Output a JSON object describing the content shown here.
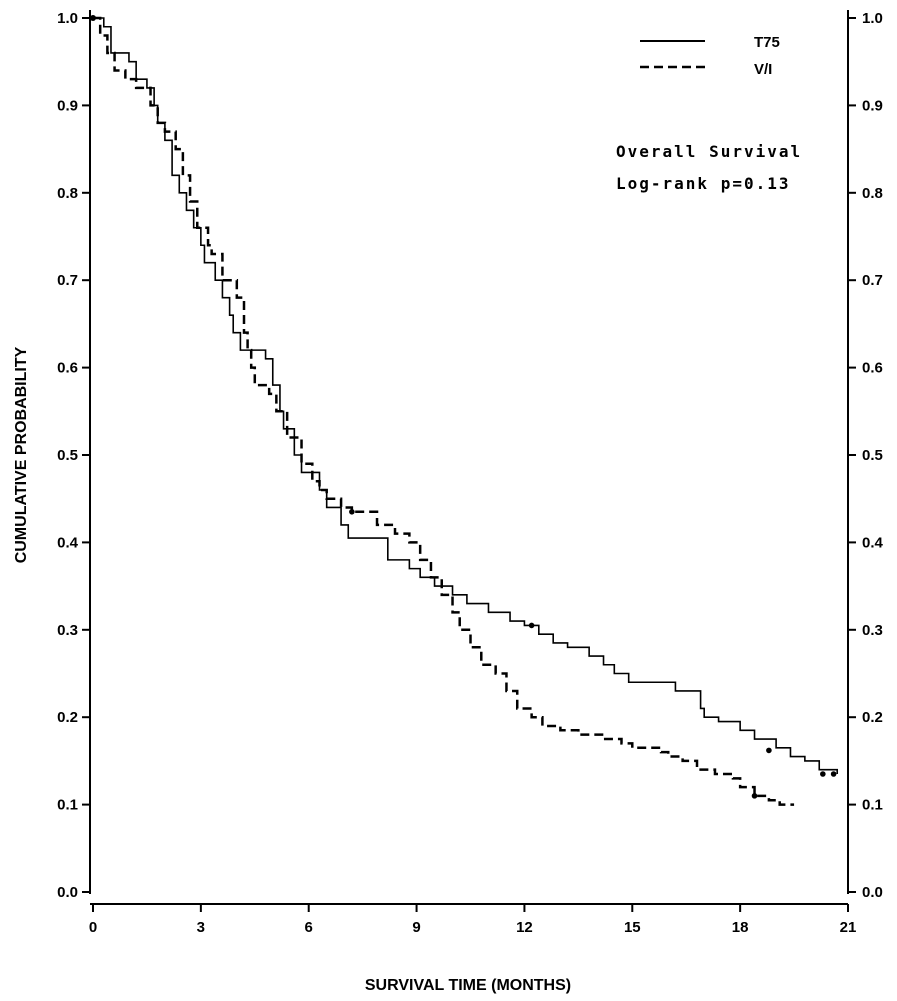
{
  "chart_data": {
    "type": "line",
    "subtype": "kaplan-meier",
    "title": "",
    "xlabel": "SURVIVAL TIME (MONTHS)",
    "ylabel": "CUMULATIVE PROBABILITY",
    "xlim": [
      0,
      21
    ],
    "ylim": [
      0.0,
      1.0
    ],
    "x_ticks": [
      0,
      3,
      6,
      9,
      12,
      15,
      18,
      21
    ],
    "x_tick_labels": [
      "0",
      "3",
      "6",
      "9",
      "12",
      "15",
      "18",
      "21"
    ],
    "y_ticks": [
      0.0,
      0.1,
      0.2,
      0.3,
      0.4,
      0.5,
      0.6,
      0.7,
      0.8,
      0.9,
      1.0
    ],
    "y_tick_labels": [
      "0.0",
      "0.1",
      "0.2",
      "0.3",
      "0.4",
      "0.5",
      "0.6",
      "0.7",
      "0.8",
      "0.9",
      "1.0"
    ],
    "grid": false,
    "legend_position": "top-right",
    "annotations": [
      "Overall Survival",
      "Log-rank p=0.13"
    ],
    "series": [
      {
        "name": "T75",
        "line_style": "solid",
        "points": [
          [
            0,
            1.0
          ],
          [
            0.3,
            0.99
          ],
          [
            0.5,
            0.96
          ],
          [
            1.0,
            0.95
          ],
          [
            1.2,
            0.93
          ],
          [
            1.5,
            0.92
          ],
          [
            1.7,
            0.9
          ],
          [
            1.8,
            0.88
          ],
          [
            2.0,
            0.86
          ],
          [
            2.2,
            0.82
          ],
          [
            2.4,
            0.8
          ],
          [
            2.6,
            0.78
          ],
          [
            2.8,
            0.76
          ],
          [
            3.0,
            0.74
          ],
          [
            3.1,
            0.72
          ],
          [
            3.4,
            0.7
          ],
          [
            3.6,
            0.68
          ],
          [
            3.8,
            0.66
          ],
          [
            3.9,
            0.64
          ],
          [
            4.1,
            0.62
          ],
          [
            4.8,
            0.61
          ],
          [
            5.0,
            0.58
          ],
          [
            5.2,
            0.55
          ],
          [
            5.3,
            0.53
          ],
          [
            5.6,
            0.5
          ],
          [
            5.8,
            0.48
          ],
          [
            6.3,
            0.46
          ],
          [
            6.5,
            0.44
          ],
          [
            6.9,
            0.42
          ],
          [
            7.1,
            0.405
          ],
          [
            8.2,
            0.38
          ],
          [
            8.8,
            0.37
          ],
          [
            9.1,
            0.36
          ],
          [
            9.5,
            0.35
          ],
          [
            10.0,
            0.34
          ],
          [
            10.4,
            0.33
          ],
          [
            11.0,
            0.32
          ],
          [
            11.6,
            0.31
          ],
          [
            12.0,
            0.305
          ],
          [
            12.4,
            0.295
          ],
          [
            12.8,
            0.285
          ],
          [
            13.2,
            0.28
          ],
          [
            13.8,
            0.27
          ],
          [
            14.2,
            0.26
          ],
          [
            14.5,
            0.25
          ],
          [
            14.9,
            0.24
          ],
          [
            16.2,
            0.23
          ],
          [
            16.9,
            0.21
          ],
          [
            17.0,
            0.2
          ],
          [
            17.4,
            0.195
          ],
          [
            18.0,
            0.185
          ],
          [
            18.4,
            0.175
          ],
          [
            19.0,
            0.165
          ],
          [
            19.4,
            0.155
          ],
          [
            19.8,
            0.15
          ],
          [
            20.2,
            0.14
          ],
          [
            20.7,
            0.135
          ]
        ],
        "censored": [
          [
            7.2,
            0.435
          ],
          [
            12.2,
            0.305
          ],
          [
            18.8,
            0.162
          ],
          [
            20.3,
            0.135
          ],
          [
            20.6,
            0.135
          ]
        ]
      },
      {
        "name": "V/I",
        "line_style": "dashed",
        "points": [
          [
            0,
            1.0
          ],
          [
            0.2,
            0.98
          ],
          [
            0.4,
            0.96
          ],
          [
            0.6,
            0.94
          ],
          [
            0.9,
            0.93
          ],
          [
            1.2,
            0.92
          ],
          [
            1.6,
            0.9
          ],
          [
            1.8,
            0.88
          ],
          [
            2.0,
            0.87
          ],
          [
            2.3,
            0.85
          ],
          [
            2.5,
            0.82
          ],
          [
            2.7,
            0.79
          ],
          [
            2.9,
            0.76
          ],
          [
            3.2,
            0.74
          ],
          [
            3.3,
            0.73
          ],
          [
            3.6,
            0.7
          ],
          [
            4.0,
            0.68
          ],
          [
            4.2,
            0.64
          ],
          [
            4.3,
            0.62
          ],
          [
            4.4,
            0.6
          ],
          [
            4.5,
            0.58
          ],
          [
            4.9,
            0.57
          ],
          [
            5.1,
            0.55
          ],
          [
            5.4,
            0.52
          ],
          [
            5.8,
            0.49
          ],
          [
            6.1,
            0.47
          ],
          [
            6.3,
            0.46
          ],
          [
            6.5,
            0.45
          ],
          [
            6.9,
            0.44
          ],
          [
            7.2,
            0.435
          ],
          [
            7.9,
            0.42
          ],
          [
            8.4,
            0.41
          ],
          [
            8.8,
            0.4
          ],
          [
            9.1,
            0.38
          ],
          [
            9.4,
            0.36
          ],
          [
            9.7,
            0.34
          ],
          [
            10.0,
            0.32
          ],
          [
            10.2,
            0.3
          ],
          [
            10.5,
            0.28
          ],
          [
            10.8,
            0.26
          ],
          [
            11.2,
            0.25
          ],
          [
            11.5,
            0.23
          ],
          [
            11.8,
            0.21
          ],
          [
            12.2,
            0.2
          ],
          [
            12.5,
            0.19
          ],
          [
            13.0,
            0.185
          ],
          [
            13.5,
            0.18
          ],
          [
            14.2,
            0.175
          ],
          [
            14.7,
            0.17
          ],
          [
            15.0,
            0.165
          ],
          [
            15.8,
            0.16
          ],
          [
            16.0,
            0.155
          ],
          [
            16.4,
            0.15
          ],
          [
            16.8,
            0.14
          ],
          [
            17.3,
            0.135
          ],
          [
            17.8,
            0.13
          ],
          [
            18.0,
            0.12
          ],
          [
            18.4,
            0.11
          ],
          [
            18.8,
            0.105
          ],
          [
            19.1,
            0.1
          ],
          [
            19.5,
            0.1
          ]
        ],
        "censored": [
          [
            18.4,
            0.11
          ]
        ]
      }
    ]
  }
}
